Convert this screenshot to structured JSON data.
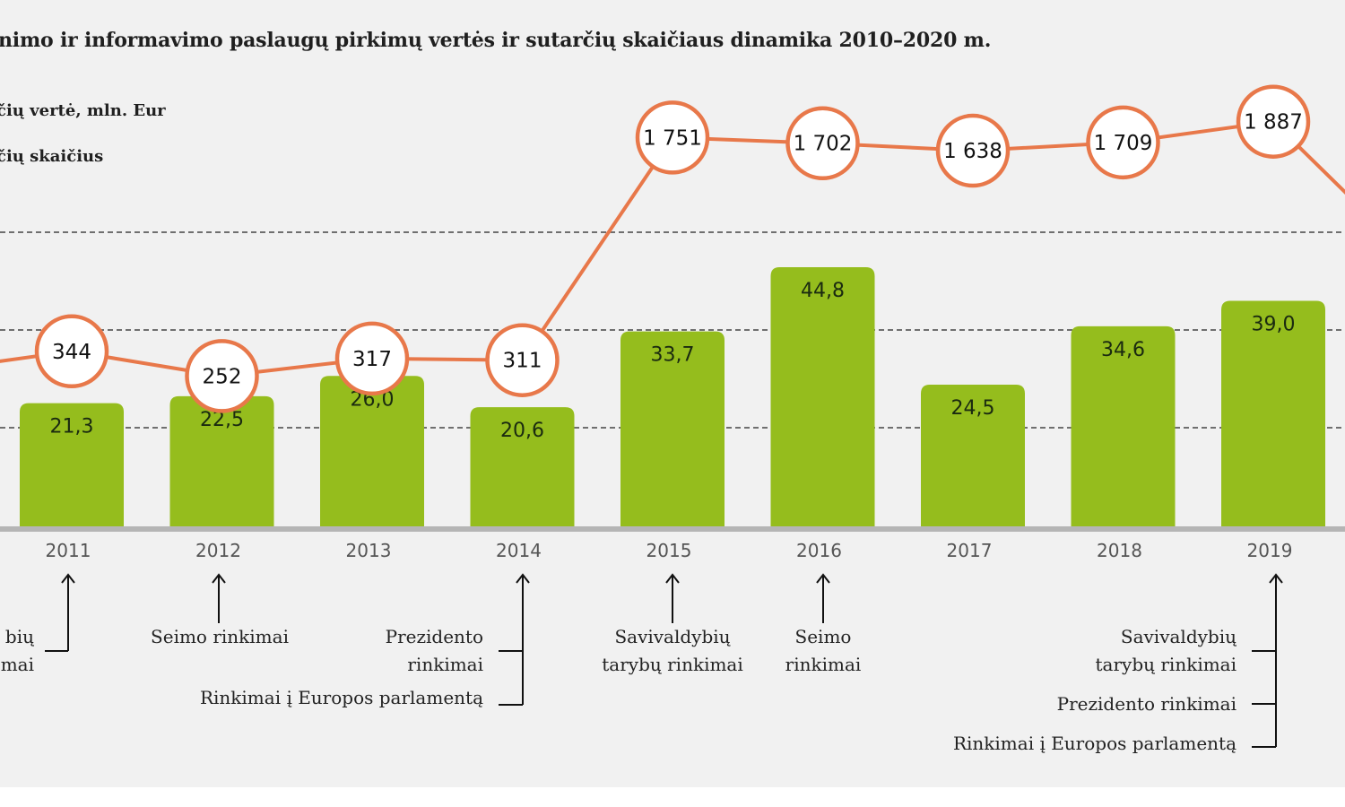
{
  "chart_data": {
    "type": "bar+line",
    "title": "nimo ir informavimo paslaugų pirkimų vertės ir sutarčių skaičiaus dinamika 2010–2020 m.",
    "legend": [
      {
        "label": "čių vertė, mln. Eur",
        "kind": "bar",
        "color": "#95bd1d"
      },
      {
        "label": "čių skaičius",
        "kind": "line",
        "color": "#e8784a"
      }
    ],
    "legend_position": "top-left",
    "categories": [
      "2011",
      "2012",
      "2013",
      "2014",
      "2015",
      "2016",
      "2017",
      "2018",
      "2019"
    ],
    "series": [
      {
        "name": "čių vertė, mln. Eur",
        "type": "bar",
        "values": [
          21.3,
          22.5,
          26.0,
          20.6,
          33.7,
          44.8,
          24.5,
          34.6,
          39.0
        ],
        "labels": [
          "21,3",
          "22,5",
          "26,0",
          "20,6",
          "33,7",
          "44,8",
          "24,5",
          "34,6",
          "39,0"
        ]
      },
      {
        "name": "čių skaičius",
        "type": "line",
        "values": [
          344,
          252,
          317,
          311,
          1751,
          1702,
          1638,
          1709,
          1887
        ],
        "labels": [
          "344",
          "252",
          "317",
          "311",
          "1 751",
          "1 702",
          "1 638",
          "1 709",
          "1 887"
        ]
      }
    ],
    "grid": true,
    "xlabel": "",
    "ylabel": ""
  },
  "annotations": [
    {
      "year": "2011",
      "lines": [
        "biu",
        "mai"
      ],
      "text_lines": [
        "bių",
        "mai"
      ]
    },
    {
      "year": "2012",
      "text_lines": [
        "Seimo rinkimai"
      ]
    },
    {
      "year": "2014",
      "text_lines": [
        "Prezidento",
        "rinkimai"
      ]
    },
    {
      "year": "2014",
      "text_lines": [
        "Rinkimai į Europos parlamentą"
      ]
    },
    {
      "year": "2015",
      "text_lines": [
        "Savivaldybių",
        "tarybų rinkimai"
      ]
    },
    {
      "year": "2016",
      "text_lines": [
        "Seimo",
        "rinkimai"
      ]
    },
    {
      "year": "2019",
      "text_lines": [
        "Savivaldybių",
        "tarybų rinkimai"
      ]
    },
    {
      "year": "2019",
      "text_lines": [
        "Prezidento rinkimai"
      ]
    },
    {
      "year": "2019",
      "text_lines": [
        "Rinkimai į Europos parlamentą"
      ]
    }
  ],
  "colors": {
    "bar": "#95bd1d",
    "line": "#e8784a",
    "circle_fill": "#ffffff",
    "background": "#f1f1f1",
    "baseline": "#b5b5b5",
    "grid": "#444444"
  }
}
